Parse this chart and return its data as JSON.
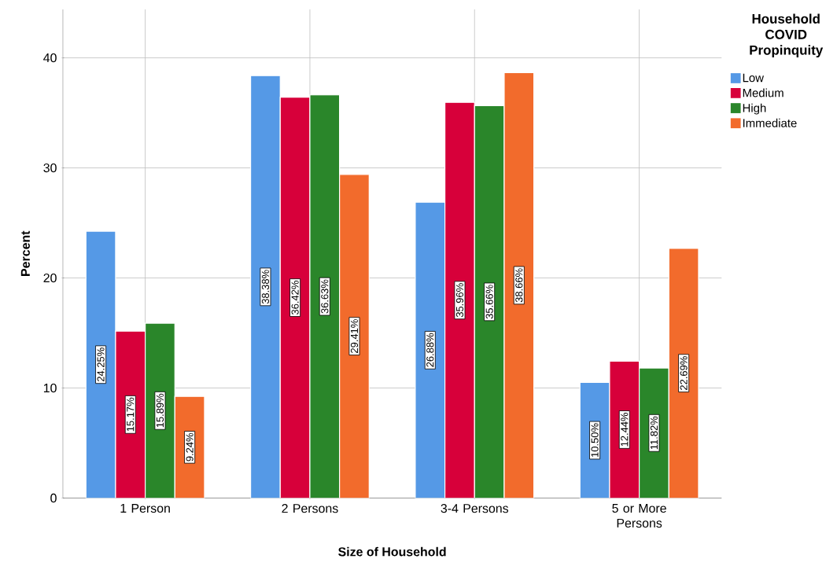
{
  "chart_data": {
    "type": "bar",
    "xlabel": "Size of Household",
    "ylabel": "Percent",
    "legend_title": "Household COVID Propinquity",
    "categories": [
      "1 Person",
      "2 Persons",
      "3-4 Persons",
      "5 or More Persons"
    ],
    "series": [
      {
        "name": "Low",
        "color": "#5599e6",
        "values": [
          24.25,
          38.38,
          26.88,
          10.5
        ],
        "value_labels": [
          "24.25%",
          "38.38%",
          "26.88%",
          "10.50%"
        ]
      },
      {
        "name": "Medium",
        "color": "#d7003a",
        "values": [
          15.17,
          36.42,
          35.96,
          12.44
        ],
        "value_labels": [
          "15.17%",
          "36.42%",
          "35.96%",
          "12.44%"
        ]
      },
      {
        "name": "High",
        "color": "#2a862a",
        "values": [
          15.89,
          36.63,
          35.66,
          11.82
        ],
        "value_labels": [
          "15.89%",
          "36.63%",
          "35.66%",
          "11.82%"
        ]
      },
      {
        "name": "Immediate",
        "color": "#f26b2c",
        "values": [
          9.24,
          29.41,
          38.66,
          22.69
        ],
        "value_labels": [
          "9.24%",
          "29.41%",
          "38.66%",
          "22.69%"
        ]
      }
    ],
    "ylim": [
      0,
      44.4
    ],
    "yticks": [
      0,
      10,
      20,
      30,
      40
    ],
    "grid": true,
    "legend": "top right"
  }
}
